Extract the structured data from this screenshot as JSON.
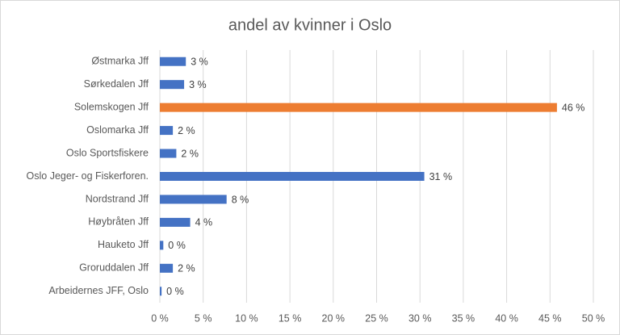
{
  "chart_data": {
    "type": "barh",
    "title": "andel av kvinner i Oslo",
    "categories": [
      "Østmarka Jff",
      "Sørkedalen Jff",
      "Solemskogen Jff",
      "Oslomarka Jff",
      "Oslo Sportsfiskere",
      "Oslo Jeger- og Fiskerforen.",
      "Nordstrand Jff",
      "Høybråten Jff",
      "Hauketo Jff",
      "Groruddalen Jff",
      "Arbeidernes JFF, Oslo"
    ],
    "values": [
      3.0,
      2.8,
      45.8,
      1.5,
      1.9,
      30.5,
      7.7,
      3.5,
      0.4,
      1.5,
      0.2
    ],
    "value_labels": [
      "3 %",
      "3 %",
      "46 %",
      "2 %",
      "2 %",
      "31 %",
      "8 %",
      "4 %",
      "0 %",
      "2 %",
      "0 %"
    ],
    "colors": [
      "#4472c4",
      "#4472c4",
      "#ed7d31",
      "#4472c4",
      "#4472c4",
      "#4472c4",
      "#4472c4",
      "#4472c4",
      "#4472c4",
      "#4472c4",
      "#4472c4"
    ],
    "xlim": [
      0,
      50
    ],
    "xticks": [
      {
        "value": 0,
        "label": "0 %"
      },
      {
        "value": 5,
        "label": "5 %"
      },
      {
        "value": 10,
        "label": "10 %"
      },
      {
        "value": 15,
        "label": "15 %"
      },
      {
        "value": 20,
        "label": "20 %"
      },
      {
        "value": 25,
        "label": "25 %"
      },
      {
        "value": 30,
        "label": "30 %"
      },
      {
        "value": 35,
        "label": "35 %"
      },
      {
        "value": 40,
        "label": "40 %"
      },
      {
        "value": 45,
        "label": "45 %"
      },
      {
        "value": 50,
        "label": "50 %"
      }
    ],
    "grid": true
  }
}
